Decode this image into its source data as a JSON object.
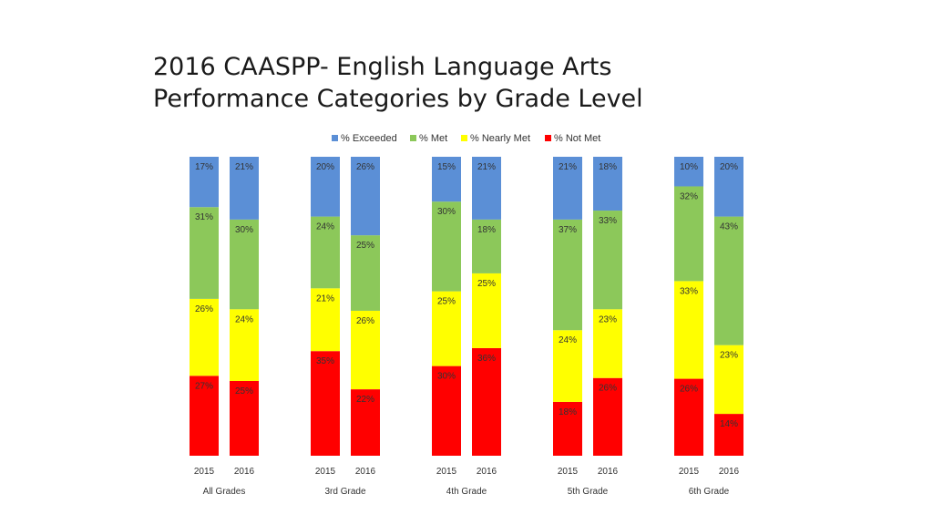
{
  "chart_data": {
    "type": "bar",
    "stacked": true,
    "normalized": true,
    "title_line1": "2016 CAASPP- English Language Arts",
    "title_line2": "Performance Categories by Grade Level",
    "legend_position": "top",
    "series_order_bottom_to_top": [
      "% Not Met",
      "% Nearly Met",
      "% Met",
      "% Exceeded"
    ],
    "legend": [
      {
        "name": "% Exceeded",
        "color": "#5b8fd6"
      },
      {
        "name": "% Met",
        "color": "#8cc85a"
      },
      {
        "name": "% Nearly Met",
        "color": "#ffff00"
      },
      {
        "name": "% Not Met",
        "color": "#ff0000"
      }
    ],
    "groups": [
      {
        "name": "All Grades",
        "bars": [
          {
            "year": "2015",
            "exceeded": 17,
            "met": 31,
            "nearly": 26,
            "notmet": 27
          },
          {
            "year": "2016",
            "exceeded": 21,
            "met": 30,
            "nearly": 24,
            "notmet": 25
          }
        ]
      },
      {
        "name": "3rd Grade",
        "bars": [
          {
            "year": "2015",
            "exceeded": 20,
            "met": 24,
            "nearly": 21,
            "notmet": 35
          },
          {
            "year": "2016",
            "exceeded": 26,
            "met": 25,
            "nearly": 26,
            "notmet": 22
          }
        ]
      },
      {
        "name": "4th Grade",
        "bars": [
          {
            "year": "2015",
            "exceeded": 15,
            "met": 30,
            "nearly": 25,
            "notmet": 30
          },
          {
            "year": "2016",
            "exceeded": 21,
            "met": 18,
            "nearly": 25,
            "notmet": 36
          }
        ]
      },
      {
        "name": "5th Grade",
        "bars": [
          {
            "year": "2015",
            "exceeded": 21,
            "met": 37,
            "nearly": 24,
            "notmet": 18
          },
          {
            "year": "2016",
            "exceeded": 18,
            "met": 33,
            "nearly": 23,
            "notmet": 26
          }
        ]
      },
      {
        "name": "6th Grade",
        "bars": [
          {
            "year": "2015",
            "exceeded": 10,
            "met": 32,
            "nearly": 33,
            "notmet": 26
          },
          {
            "year": "2016",
            "exceeded": 20,
            "met": 43,
            "nearly": 23,
            "notmet": 14
          }
        ]
      }
    ]
  }
}
